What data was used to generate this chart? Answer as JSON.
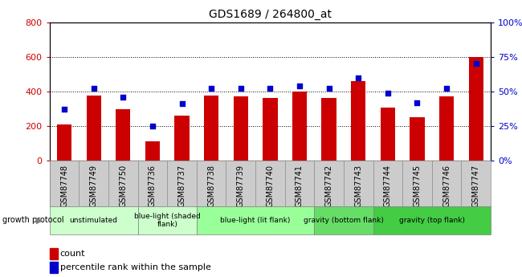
{
  "title": "GDS1689 / 264800_at",
  "samples": [
    "GSM87748",
    "GSM87749",
    "GSM87750",
    "GSM87736",
    "GSM87737",
    "GSM87738",
    "GSM87739",
    "GSM87740",
    "GSM87741",
    "GSM87742",
    "GSM87743",
    "GSM87744",
    "GSM87745",
    "GSM87746",
    "GSM87747"
  ],
  "counts": [
    210,
    375,
    295,
    110,
    260,
    375,
    370,
    360,
    400,
    360,
    460,
    305,
    250,
    370,
    600
  ],
  "percentiles": [
    37,
    52,
    46,
    25,
    41,
    52,
    52,
    52,
    54,
    52,
    60,
    49,
    42,
    52,
    70
  ],
  "bar_color": "#cc0000",
  "dot_color": "#0000cc",
  "ylim_left": [
    0,
    800
  ],
  "ylim_right": [
    0,
    100
  ],
  "yticks_left": [
    0,
    200,
    400,
    600,
    800
  ],
  "yticks_right": [
    0,
    25,
    50,
    75,
    100
  ],
  "groups": [
    {
      "label": "unstimulated",
      "start": 0,
      "end": 3,
      "color": "#ccffcc"
    },
    {
      "label": "blue-light (shaded\nflank)",
      "start": 3,
      "end": 5,
      "color": "#ccffcc"
    },
    {
      "label": "blue-light (lit flank)",
      "start": 5,
      "end": 9,
      "color": "#99ff99"
    },
    {
      "label": "gravity (bottom flank)",
      "start": 9,
      "end": 11,
      "color": "#66dd66"
    },
    {
      "label": "gravity (top flank)",
      "start": 11,
      "end": 15,
      "color": "#44cc44"
    }
  ],
  "group_label": "growth protocol",
  "legend_count_label": "count",
  "legend_pct_label": "percentile rank within the sample",
  "bar_width": 0.5,
  "label_bg_color": "#cccccc",
  "label_border_color": "#888888"
}
